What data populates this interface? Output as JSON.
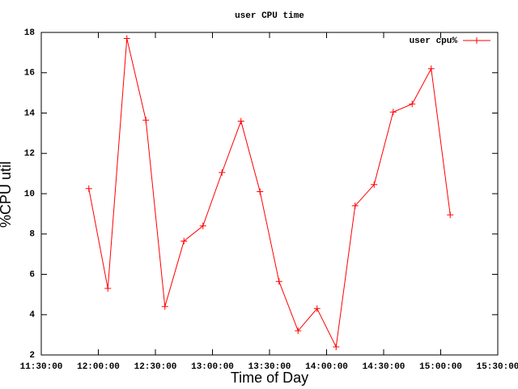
{
  "chart_data": {
    "type": "line",
    "title": "user CPU time",
    "xlabel": "Time of Day",
    "ylabel": "%CPU util",
    "x": [
      "11:55:00",
      "12:05:00",
      "12:15:00",
      "12:25:00",
      "12:35:00",
      "12:45:00",
      "12:55:00",
      "13:05:00",
      "13:15:00",
      "13:25:00",
      "13:35:00",
      "13:45:00",
      "13:55:00",
      "14:05:00",
      "14:15:00",
      "14:25:00",
      "14:35:00",
      "14:45:00",
      "14:55:00",
      "15:05:00"
    ],
    "series": [
      {
        "name": "user cpu%",
        "color": "#ff0000",
        "values": [
          10.25,
          5.3,
          17.7,
          13.65,
          4.4,
          7.65,
          8.4,
          11.05,
          13.6,
          10.1,
          5.65,
          3.2,
          4.3,
          2.4,
          9.4,
          10.45,
          14.05,
          14.45,
          16.2,
          8.95
        ]
      }
    ],
    "xlim": [
      "11:30:00",
      "15:30:00"
    ],
    "xticks": [
      "11:30:00",
      "12:00:00",
      "12:30:00",
      "13:00:00",
      "13:30:00",
      "14:00:00",
      "14:30:00",
      "15:00:00",
      "15:30:00"
    ],
    "ylim": [
      2,
      18
    ],
    "yticks": [
      2,
      4,
      6,
      8,
      10,
      12,
      14,
      16,
      18
    ],
    "legend": "top-right"
  }
}
